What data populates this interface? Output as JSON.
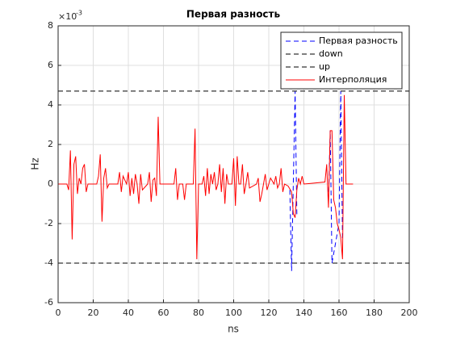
{
  "chart_data": {
    "type": "line",
    "title": "Первая разность",
    "x_label": "ns",
    "y_label": "Hz",
    "y_exponent": {
      "base": "×10",
      "power": "-3"
    },
    "xlim": [
      0,
      200
    ],
    "xticks": [
      0,
      20,
      40,
      60,
      80,
      100,
      120,
      140,
      160,
      180,
      200
    ],
    "ylim": [
      -6,
      8
    ],
    "yticks": [
      -6,
      -4,
      -2,
      0,
      2,
      4,
      6,
      8
    ],
    "grid": true,
    "legend": "northeast",
    "series": [
      {
        "name": "Первая разность",
        "color": "#0000ff",
        "style": "dashed",
        "x": [
          132,
          133,
          135,
          136,
          null,
          154,
          155,
          156,
          160,
          161,
          162
        ],
        "values": [
          -0.3,
          -4.4,
          4.7,
          -1.6,
          null,
          -0.8,
          2.7,
          -4.0,
          -2.0,
          4.7,
          -2.8
        ]
      },
      {
        "name": "down",
        "color": "#000000",
        "style": "dashed",
        "x": [
          0,
          200
        ],
        "values": [
          -4.0,
          -4.0
        ]
      },
      {
        "name": "up",
        "color": "#000000",
        "style": "dashed",
        "x": [
          0,
          200
        ],
        "values": [
          4.7,
          4.7
        ]
      },
      {
        "name": "Интерполяция",
        "color": "#ff0000",
        "style": "solid",
        "x": [
          0,
          5,
          6,
          7,
          8,
          9,
          10,
          11,
          12,
          13,
          14,
          15,
          16,
          17,
          22,
          23,
          24,
          25,
          26,
          27,
          28,
          29,
          34,
          35,
          36,
          37,
          39,
          40,
          41,
          42,
          43,
          44,
          45,
          46,
          47,
          48,
          51,
          52,
          53,
          54,
          55,
          56,
          57,
          58,
          66,
          67,
          68,
          69,
          71,
          72,
          73,
          77,
          78,
          79,
          80,
          82,
          83,
          84,
          85,
          86,
          87,
          88,
          89,
          90,
          91,
          92,
          93,
          94,
          95,
          96,
          97,
          99,
          100,
          101,
          102,
          103,
          104,
          105,
          106,
          107,
          108,
          109,
          113,
          114,
          115,
          116,
          117,
          118,
          119,
          120,
          121,
          123,
          124,
          125,
          126,
          127,
          128,
          129,
          131,
          133,
          134,
          135,
          136,
          137,
          138,
          139,
          140,
          152,
          153,
          154,
          155,
          156,
          157,
          158,
          159,
          160,
          161,
          162,
          163,
          164,
          168
        ],
        "values": [
          0,
          0,
          -0.3,
          1.7,
          -2.8,
          1.0,
          1.4,
          -0.5,
          0.3,
          0,
          0.8,
          1.0,
          -0.4,
          0,
          0,
          0.4,
          1.5,
          -1.9,
          0.3,
          0.8,
          -0.2,
          0,
          0,
          0.6,
          -0.4,
          0.4,
          0,
          0.6,
          -0.6,
          0.3,
          -0.5,
          0.5,
          0,
          -1.0,
          0.5,
          -0.3,
          0,
          0.6,
          -0.9,
          0.2,
          0.3,
          -0.6,
          3.4,
          0,
          0,
          0.8,
          -0.8,
          0,
          0,
          -0.8,
          0,
          0,
          2.8,
          -3.8,
          0,
          0,
          0.4,
          -0.6,
          0.8,
          -0.5,
          0.5,
          0,
          0.6,
          -0.3,
          0,
          1.0,
          -0.4,
          0.8,
          -1.0,
          0.5,
          0,
          0,
          1.3,
          -1.1,
          1.4,
          0,
          0,
          1.0,
          -0.5,
          0,
          0.6,
          -0.2,
          0,
          0.3,
          -0.9,
          -0.5,
          0,
          0.5,
          -0.3,
          0,
          0.3,
          0,
          0.4,
          -0.2,
          0,
          0.8,
          -0.4,
          0,
          -0.1,
          -0.4,
          -1.5,
          -1.7,
          -0.3,
          0.3,
          0,
          0.4,
          0,
          0.1,
          1.0,
          -1.2,
          2.7,
          2.7,
          -0.8,
          -1.2,
          -2.0,
          -2.3,
          -2.7,
          -3.8,
          4.5,
          0,
          0
        ]
      }
    ]
  }
}
